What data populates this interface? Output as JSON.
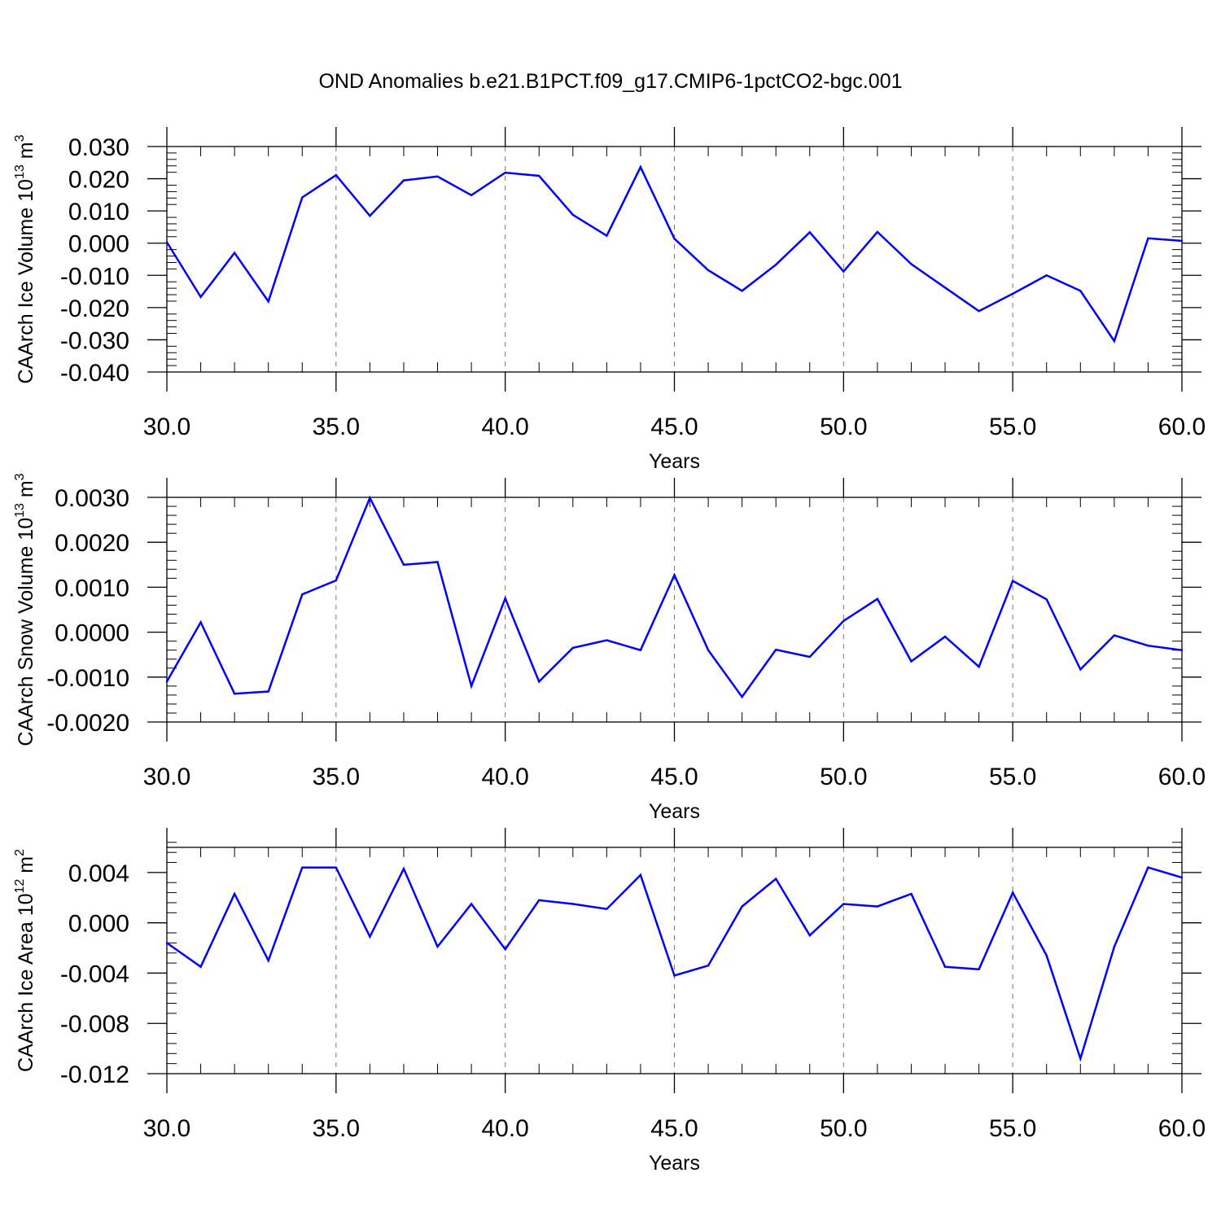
{
  "title": "OND Anomalies b.e21.B1PCT.f09_g17.CMIP6-1pctCO2-bgc.001",
  "chart_data": [
    {
      "type": "line",
      "title": "",
      "xlabel": "Years",
      "ylabel": {
        "text": "CAArch Ice Volume 10",
        "exp": "13",
        "unit": " m",
        "unit_exp": "3"
      },
      "xlim": [
        30,
        60
      ],
      "ylim": [
        -0.04,
        0.03
      ],
      "x_ticks": [
        30,
        35,
        40,
        45,
        50,
        55,
        60
      ],
      "x_tick_labels": [
        "30.0",
        "35.0",
        "40.0",
        "45.0",
        "50.0",
        "55.0",
        "60.0"
      ],
      "y_ticks": [
        0.03,
        0.02,
        0.01,
        0.0,
        -0.01,
        -0.02,
        -0.03,
        -0.04
      ],
      "y_tick_labels": [
        "0.030",
        "0.020",
        "0.010",
        "0.000",
        "-0.010",
        "-0.020",
        "-0.030",
        "-0.040"
      ],
      "ref_line": null,
      "grid": "vertical dashed at major x ticks",
      "line_color": "#0000ff",
      "x": [
        30,
        31,
        32,
        33,
        34,
        35,
        36,
        37,
        38,
        39,
        40,
        41,
        42,
        43,
        44,
        45,
        46,
        47,
        48,
        49,
        50,
        51,
        52,
        53,
        54,
        55,
        56,
        57,
        58,
        59,
        60
      ],
      "values": [
        0.0003,
        -0.0167,
        -0.003,
        -0.0181,
        0.0142,
        0.0211,
        0.0085,
        0.0195,
        0.0207,
        0.0149,
        0.0219,
        0.0209,
        0.0088,
        0.0023,
        0.0236,
        0.0014,
        -0.0084,
        -0.0148,
        -0.0067,
        0.0034,
        -0.0088,
        0.0035,
        -0.0065,
        -0.0138,
        -0.0211,
        -0.0157,
        -0.01,
        -0.0148,
        -0.0304,
        0.0015,
        0.0007
      ]
    },
    {
      "type": "line",
      "title": "",
      "xlabel": "Years",
      "ylabel": {
        "text": "CAArch Snow Volume 10",
        "exp": "13",
        "unit": " m",
        "unit_exp": "3"
      },
      "xlim": [
        30,
        60
      ],
      "ylim": [
        -0.002,
        0.003
      ],
      "x_ticks": [
        30,
        35,
        40,
        45,
        50,
        55,
        60
      ],
      "x_tick_labels": [
        "30.0",
        "35.0",
        "40.0",
        "45.0",
        "50.0",
        "55.0",
        "60.0"
      ],
      "y_ticks": [
        0.003,
        0.002,
        0.001,
        0.0,
        -0.001,
        -0.002
      ],
      "y_tick_labels": [
        "0.0030",
        "0.0020",
        "0.0010",
        "0.0000",
        "-0.0010",
        "-0.0020"
      ],
      "ref_line": null,
      "grid": "vertical dashed at major x ticks",
      "line_color": "#0000ff",
      "x": [
        30,
        31,
        32,
        33,
        34,
        35,
        36,
        37,
        38,
        39,
        40,
        41,
        42,
        43,
        44,
        45,
        46,
        47,
        48,
        49,
        50,
        51,
        52,
        53,
        54,
        55,
        56,
        57,
        58,
        59,
        60
      ],
      "values": [
        -0.0011,
        0.00022,
        -0.00137,
        -0.00132,
        0.00084,
        0.00115,
        0.00299,
        0.0015,
        0.00156,
        -0.0012,
        0.00075,
        -0.0011,
        -0.00035,
        -0.00018,
        -0.0004,
        0.00127,
        -0.0004,
        -0.00144,
        -0.00039,
        -0.00055,
        0.00025,
        0.00074,
        -0.00065,
        -0.0001,
        -0.00077,
        0.00114,
        0.00073,
        -0.00083,
        -7e-05,
        -0.0003,
        -0.0004
      ]
    },
    {
      "type": "line",
      "title": "",
      "xlabel": "Years",
      "ylabel": {
        "text": "CAArch Ice Area 10",
        "exp": "12",
        "unit": " m",
        "unit_exp": "2"
      },
      "xlim": [
        30,
        60
      ],
      "ylim": [
        -0.012,
        0.006
      ],
      "x_ticks": [
        30,
        35,
        40,
        45,
        50,
        55,
        60
      ],
      "x_tick_labels": [
        "30.0",
        "35.0",
        "40.0",
        "45.0",
        "50.0",
        "55.0",
        "60.0"
      ],
      "y_ticks": [
        0.004,
        0.0,
        -0.004,
        -0.008,
        -0.012
      ],
      "y_tick_labels": [
        "0.004",
        "0.000",
        "-0.004",
        "-0.008",
        "-0.012"
      ],
      "ref_line": null,
      "grid": "vertical dashed at major x ticks",
      "line_color": "#0000ff",
      "x": [
        30,
        31,
        32,
        33,
        34,
        35,
        36,
        37,
        38,
        39,
        40,
        41,
        42,
        43,
        44,
        45,
        46,
        47,
        48,
        49,
        50,
        51,
        52,
        53,
        54,
        55,
        56,
        57,
        58,
        59,
        60
      ],
      "values": [
        -0.0016,
        -0.0035,
        0.0023,
        -0.003,
        0.0044,
        0.0044,
        -0.0011,
        0.0043,
        -0.0019,
        0.0015,
        -0.0021,
        0.0018,
        0.0015,
        0.0011,
        0.0038,
        -0.0042,
        -0.0034,
        0.0013,
        0.0035,
        -0.001,
        0.0015,
        0.0013,
        0.0023,
        -0.0035,
        -0.0037,
        0.0024,
        -0.0026,
        -0.0108,
        -0.0019,
        0.0044,
        0.0036
      ]
    }
  ]
}
